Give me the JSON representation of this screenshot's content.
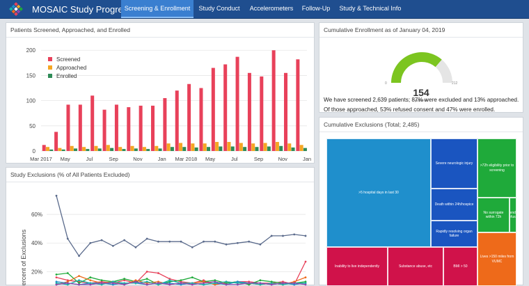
{
  "app": {
    "title": "MOSAIC Study Progress"
  },
  "nav": [
    {
      "label": "Screening & Enrollment",
      "active": true
    },
    {
      "label": "Study Conduct",
      "active": false
    },
    {
      "label": "Accelerometers",
      "active": false
    },
    {
      "label": "Follow-Up",
      "active": false
    },
    {
      "label": "Study & Technical Info",
      "active": false
    }
  ],
  "screening_panel": {
    "title": "Patients Screened, Approached, and Enrolled"
  },
  "exclusions_panel": {
    "title": "Study Exclusions (% of All Patients Excluded)"
  },
  "gauge_panel": {
    "title": "Cumulative Enrollment as of January 04, 2019",
    "value": "154",
    "min": "0",
    "max": "212",
    "unit": "patients",
    "summary": "We have screened 2,639 patients; 87% were excluded and 13% approached. Of those approached, 53% refused consent and 47% were enrolled."
  },
  "treemap_panel": {
    "title": "Cumulative Exclusions (Total; 2,485)",
    "cells": [
      {
        "label": ">5 hospital days in last 30",
        "color": "#1f8fcc"
      },
      {
        "label": "Severe neurologic injury",
        "color": "#1a55c0"
      },
      {
        "label": "Death within 24h/hospice",
        "color": "#1a55c0"
      },
      {
        "label": "Rapidly resolving organ failure",
        "color": "#1a55c0"
      },
      {
        "label": ">72h eligibility prior to screening",
        "color": "#1faa3a"
      },
      {
        "label": "No surrogate within 72h",
        "color": "#1faa3a"
      },
      {
        "label": "Attending refusal",
        "color": "#1faa3a"
      },
      {
        "label": "Inability to live independently",
        "color": "#d0124a"
      },
      {
        "label": "Substance abuse, etc",
        "color": "#d0124a"
      },
      {
        "label": "BMI > 50",
        "color": "#d0124a"
      },
      {
        "label": "Lives >150 miles from VUMC",
        "color": "#ee6a1a"
      }
    ]
  },
  "chart_data": [
    {
      "type": "bar",
      "legend_position": "top-left",
      "x_tick_labels": [
        "Mar 2017",
        "May",
        "Jul",
        "Sep",
        "Nov",
        "Jan",
        "Mar 2018",
        "May",
        "Jul",
        "Sep",
        "Nov",
        "Jan"
      ],
      "ylim": [
        0,
        210
      ],
      "y_ticks": [
        0,
        50,
        100,
        150,
        200
      ],
      "grid": true,
      "categories": [
        "Mar-17",
        "Apr-17",
        "May-17",
        "Jun-17",
        "Jul-17",
        "Aug-17",
        "Sep-17",
        "Oct-17",
        "Nov-17",
        "Dec-17",
        "Jan-18",
        "Feb-18",
        "Mar-18",
        "Apr-18",
        "May-18",
        "Jun-18",
        "Jul-18",
        "Aug-18",
        "Sep-18",
        "Oct-18",
        "Nov-18",
        "Dec-18"
      ],
      "series": [
        {
          "name": "Screened",
          "color": "#e8415a",
          "values": [
            12,
            38,
            92,
            92,
            110,
            82,
            92,
            87,
            90,
            90,
            105,
            120,
            133,
            125,
            165,
            172,
            187,
            155,
            148,
            200,
            155,
            182
          ]
        },
        {
          "name": "Approached",
          "color": "#f5a623",
          "values": [
            8,
            6,
            10,
            8,
            10,
            12,
            8,
            10,
            8,
            10,
            15,
            16,
            15,
            15,
            18,
            18,
            16,
            15,
            16,
            18,
            15,
            12
          ]
        },
        {
          "name": "Enrolled",
          "color": "#2e8b57",
          "values": [
            3,
            3,
            5,
            4,
            5,
            6,
            4,
            5,
            4,
            5,
            8,
            8,
            7,
            8,
            9,
            9,
            8,
            8,
            9,
            10,
            7,
            6
          ]
        }
      ]
    },
    {
      "type": "line",
      "ylabel": "Percent of Exclusions",
      "y_ticks": [
        "20%",
        "40%",
        "60%"
      ],
      "ylim": [
        0.1,
        0.78
      ],
      "grid": true,
      "series": [
        {
          "color": "#5b6b8c",
          "values": [
            0.73,
            0.43,
            0.31,
            0.4,
            0.42,
            0.38,
            0.42,
            0.37,
            0.43,
            0.41,
            0.41,
            0.41,
            0.37,
            0.41,
            0.41,
            0.39,
            0.4,
            0.41,
            0.39,
            0.45,
            0.45,
            0.46,
            0.45
          ]
        },
        {
          "color": "#e8415a",
          "values": [
            0.16,
            0.14,
            0.13,
            0.12,
            0.13,
            0.12,
            0.14,
            0.12,
            0.2,
            0.19,
            0.15,
            0.13,
            0.12,
            0.14,
            0.11,
            0.12,
            0.13,
            0.13,
            0.12,
            0.12,
            0.13,
            0.11,
            0.27
          ]
        },
        {
          "color": "#1faa3a",
          "values": [
            0.18,
            0.19,
            0.12,
            0.16,
            0.14,
            0.13,
            0.15,
            0.13,
            0.15,
            0.11,
            0.13,
            0.14,
            0.16,
            0.13,
            0.14,
            0.12,
            0.13,
            0.11,
            0.14,
            0.13,
            0.12,
            0.12,
            0.13
          ]
        },
        {
          "color": "#ee6a1a",
          "values": [
            0.11,
            0.13,
            0.17,
            0.14,
            0.12,
            0.13,
            0.11,
            0.14,
            0.12,
            0.13,
            0.11,
            0.12,
            0.12,
            0.13,
            0.11,
            0.13,
            0.12,
            0.12,
            0.11,
            0.12,
            0.11,
            0.13,
            0.16
          ]
        },
        {
          "color": "#1f8fcc",
          "values": [
            0.13,
            0.12,
            0.11,
            0.12,
            0.12,
            0.11,
            0.12,
            0.12,
            0.11,
            0.12,
            0.12,
            0.11,
            0.12,
            0.11,
            0.12,
            0.11,
            0.13,
            0.12,
            0.12,
            0.11,
            0.12,
            0.11,
            0.12
          ]
        },
        {
          "color": "#17b3a6",
          "values": [
            0.12,
            0.11,
            0.14,
            0.12,
            0.11,
            0.13,
            0.12,
            0.12,
            0.13,
            0.11,
            0.14,
            0.12,
            0.12,
            0.11,
            0.12,
            0.13,
            0.12,
            0.12,
            0.11,
            0.12,
            0.11,
            0.12,
            0.12
          ]
        },
        {
          "color": "#8e44ad",
          "values": [
            0.11,
            0.12,
            0.11,
            0.11,
            0.12,
            0.12,
            0.11,
            0.13,
            0.11,
            0.12,
            0.11,
            0.12,
            0.11,
            0.12,
            0.13,
            0.11,
            0.11,
            0.12,
            0.12,
            0.11,
            0.12,
            0.12,
            0.11
          ]
        }
      ]
    }
  ]
}
